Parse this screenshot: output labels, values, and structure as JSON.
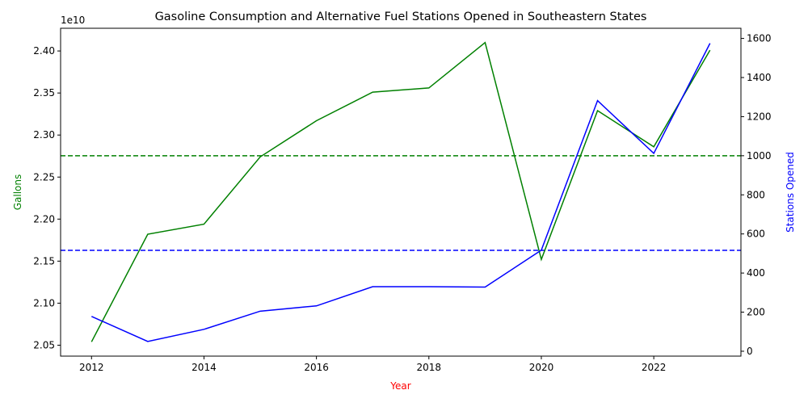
{
  "chart_data": {
    "type": "line",
    "title": "Gasoline Consumption and Alternative Fuel Stations Opened in Southeastern States",
    "xlabel": "Year",
    "xlabel_color": "#ff0000",
    "x": [
      2012,
      2013,
      2014,
      2015,
      2016,
      2017,
      2018,
      2019,
      2020,
      2021,
      2022,
      2023
    ],
    "xlim": [
      2011.45,
      2023.55
    ],
    "xticks": [
      2012,
      2014,
      2016,
      2018,
      2020,
      2022
    ],
    "left_axis": {
      "label": "Gallons",
      "color": "#008000",
      "offset_label": "1e10",
      "ylim": [
        20.37,
        24.27
      ],
      "ticks": [
        20.5,
        21.0,
        21.5,
        22.0,
        22.5,
        23.0,
        23.5,
        24.0
      ],
      "tick_labels": [
        "2.05",
        "2.10",
        "2.15",
        "2.20",
        "2.25",
        "2.30",
        "2.35",
        "2.40"
      ]
    },
    "right_axis": {
      "label": "Stations Opened",
      "color": "#0000ff",
      "ylim": [
        -25,
        1652
      ],
      "ticks": [
        0,
        200,
        400,
        600,
        800,
        1000,
        1200,
        1400,
        1600
      ],
      "tick_labels": [
        "0",
        "200",
        "400",
        "600",
        "800",
        "1000",
        "1200",
        "1400",
        "1600"
      ]
    },
    "series": [
      {
        "axis": "left",
        "color": "#008000",
        "unit": "1e9 gallons",
        "values": [
          20.54,
          21.82,
          21.94,
          22.74,
          23.17,
          23.51,
          23.56,
          24.1,
          21.52,
          23.29,
          22.86,
          24.01
        ]
      },
      {
        "axis": "right",
        "color": "#0000ff",
        "values": [
          178,
          50,
          112,
          205,
          232,
          330,
          330,
          328,
          517,
          1282,
          1012,
          1575
        ]
      }
    ],
    "reference_lines": [
      {
        "axis": "right",
        "value": 1000,
        "color": "#008000",
        "style": "dashed"
      },
      {
        "axis": "right",
        "value": 516,
        "color": "#0000ff",
        "style": "dashed"
      }
    ],
    "grid": false,
    "legend": "none"
  }
}
